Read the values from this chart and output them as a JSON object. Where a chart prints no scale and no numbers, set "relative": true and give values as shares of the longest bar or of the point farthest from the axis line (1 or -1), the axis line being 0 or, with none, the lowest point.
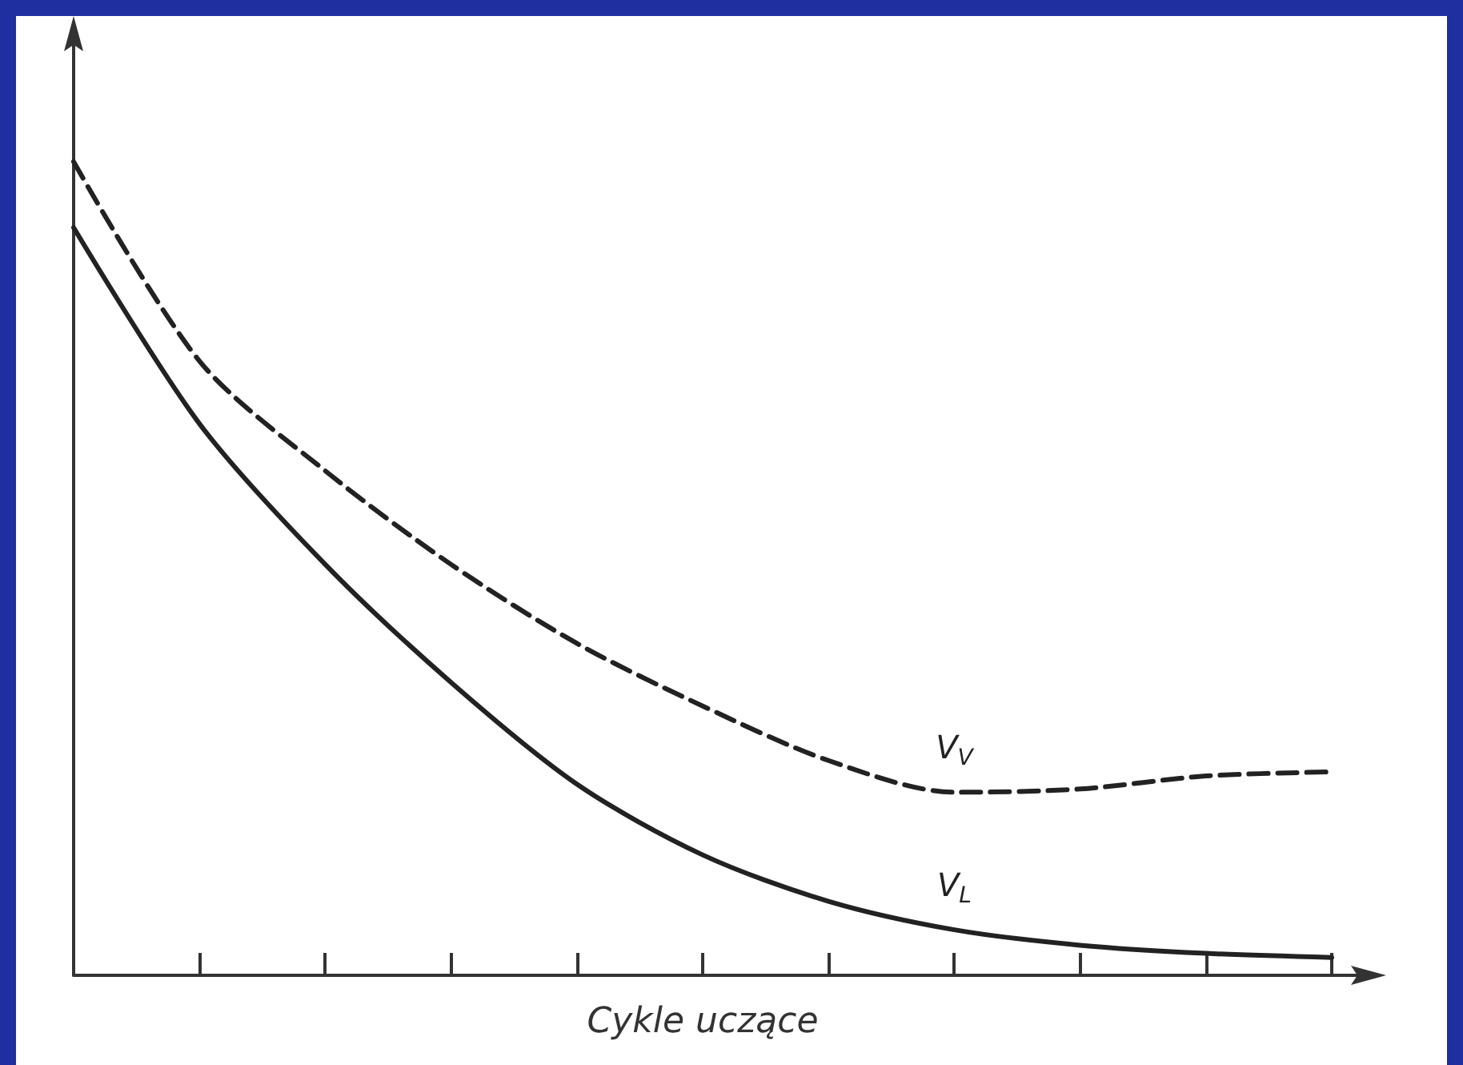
{
  "chart_data": {
    "type": "line",
    "xlabel": "Cykle uczące",
    "relative": true,
    "legend": false,
    "grid": false,
    "marker": "none",
    "categories": [
      null,
      null,
      null,
      null,
      null,
      null,
      null,
      null,
      null,
      null,
      null
    ],
    "series": [
      {
        "name": "V$_{V}$",
        "color": "#222222",
        "line_style": "dashed",
        "values": [
          1,
          0.755,
          0.62,
          0.505,
          0.408,
          0.331,
          0.264,
          0.225,
          0.229,
          0.245,
          0.25
        ]
      },
      {
        "name": "V$_{L}$",
        "color": "#222222",
        "line_style": "solid",
        "values": [
          0.919,
          0.678,
          0.505,
          0.36,
          0.235,
          0.148,
          0.091,
          0.056,
          0.037,
          0.027,
          0.022
        ]
      }
    ]
  }
}
